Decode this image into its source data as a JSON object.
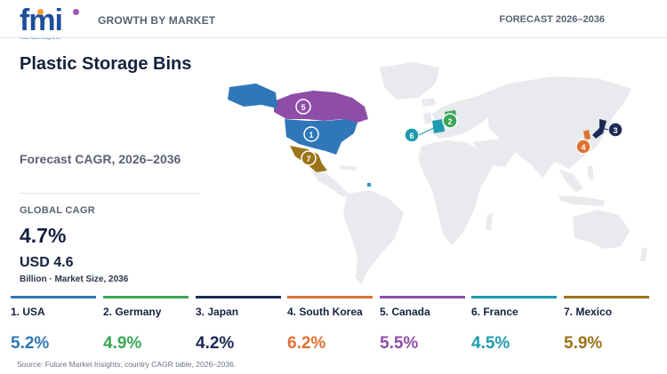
{
  "header": {
    "logo_text": "fmi",
    "logo_subtext": "Future Market Insights Inc.",
    "section": "GROWTH BY MARKET",
    "forecast": "FORECAST 2026–2036"
  },
  "panel": {
    "title": "Plastic Storage Bins",
    "subtitle": "Forecast CAGR, 2026–2036",
    "global_cagr_label": "GLOBAL CAGR",
    "global_cagr_value": "4.7%",
    "market_size_value": "USD 4.6",
    "market_size_note": "Billion · Market Size, 2036"
  },
  "countries": [
    {
      "rank": "1",
      "label": "1. USA",
      "cagr": "5.2%",
      "color": "#2f77b8"
    },
    {
      "rank": "2",
      "label": "2. Germany",
      "cagr": "4.9%",
      "color": "#3aa655"
    },
    {
      "rank": "3",
      "label": "3. Japan",
      "cagr": "4.2%",
      "color": "#1b2a55"
    },
    {
      "rank": "4",
      "label": "4. South Korea",
      "cagr": "6.2%",
      "color": "#e07232"
    },
    {
      "rank": "5",
      "label": "5. Canada",
      "cagr": "5.5%",
      "color": "#8e4ea8"
    },
    {
      "rank": "6",
      "label": "6. France",
      "cagr": "4.5%",
      "color": "#1e9bb0"
    },
    {
      "rank": "7",
      "label": "7. Mexico",
      "cagr": "5.9%",
      "color": "#9a7418"
    }
  ],
  "map_colors": {
    "land": "#e8eaed",
    "highlight_small": "#1e9bb0"
  },
  "source": "Source: Future Market Insights; country CAGR table, 2026–2036."
}
